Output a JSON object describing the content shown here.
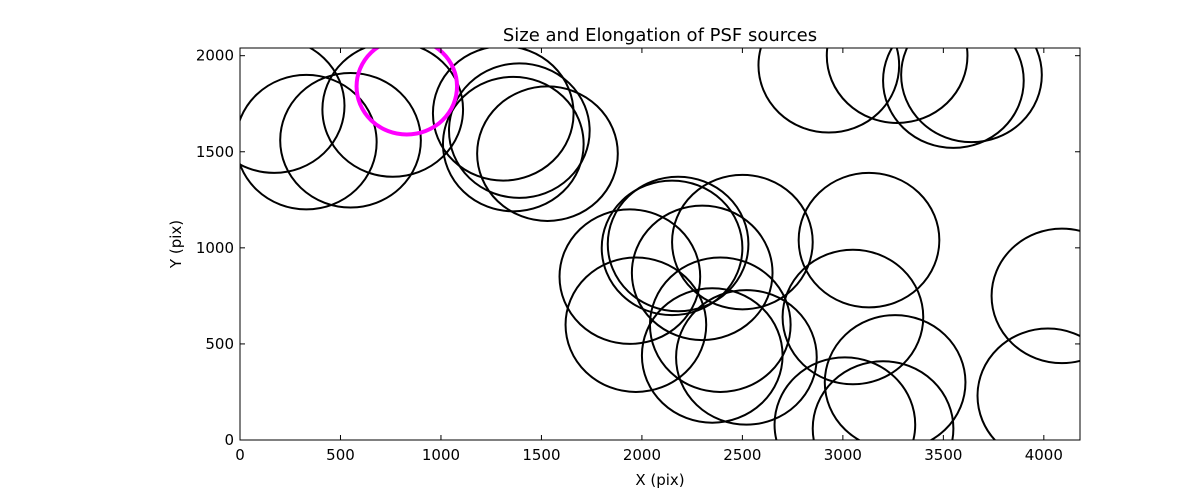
{
  "chart_data": {
    "type": "scatter",
    "marker": "circle",
    "title": "Size and Elongation of PSF sources",
    "xlabel": "X (pix)",
    "ylabel": "Y (pix)",
    "xlim": [
      0,
      4180
    ],
    "ylim": [
      0,
      2040
    ],
    "xticks": [
      0,
      500,
      1000,
      1500,
      2000,
      2500,
      3000,
      3500,
      4000
    ],
    "yticks": [
      0,
      500,
      1000,
      1500,
      2000
    ],
    "grid": false,
    "colors": {
      "default": "#000000",
      "highlight": "#ff00ff"
    },
    "sources": [
      {
        "x": 170,
        "y": 1740,
        "r": 350
      },
      {
        "x": 330,
        "y": 1550,
        "r": 350
      },
      {
        "x": 550,
        "y": 1560,
        "r": 350
      },
      {
        "x": 760,
        "y": 1720,
        "r": 350
      },
      {
        "x": 830,
        "y": 1840,
        "r": 250,
        "highlight": true
      },
      {
        "x": 1310,
        "y": 1700,
        "r": 350
      },
      {
        "x": 1390,
        "y": 1610,
        "r": 350
      },
      {
        "x": 1360,
        "y": 1540,
        "r": 350
      },
      {
        "x": 1530,
        "y": 1490,
        "r": 350
      },
      {
        "x": 1940,
        "y": 850,
        "r": 350
      },
      {
        "x": 1970,
        "y": 600,
        "r": 350
      },
      {
        "x": 2150,
        "y": 1000,
        "r": 350
      },
      {
        "x": 2180,
        "y": 1020,
        "r": 350
      },
      {
        "x": 2300,
        "y": 870,
        "r": 350
      },
      {
        "x": 2500,
        "y": 1030,
        "r": 350
      },
      {
        "x": 2390,
        "y": 600,
        "r": 350
      },
      {
        "x": 2350,
        "y": 440,
        "r": 350
      },
      {
        "x": 2520,
        "y": 430,
        "r": 350
      },
      {
        "x": 2930,
        "y": 1950,
        "r": 350
      },
      {
        "x": 3270,
        "y": 2000,
        "r": 350
      },
      {
        "x": 3550,
        "y": 1870,
        "r": 350
      },
      {
        "x": 3640,
        "y": 1900,
        "r": 350
      },
      {
        "x": 3130,
        "y": 1040,
        "r": 350
      },
      {
        "x": 3050,
        "y": 640,
        "r": 350
      },
      {
        "x": 3260,
        "y": 300,
        "r": 350
      },
      {
        "x": 3010,
        "y": 80,
        "r": 350
      },
      {
        "x": 3200,
        "y": 60,
        "r": 350
      },
      {
        "x": 4090,
        "y": 750,
        "r": 350
      },
      {
        "x": 4020,
        "y": 230,
        "r": 350
      }
    ]
  }
}
